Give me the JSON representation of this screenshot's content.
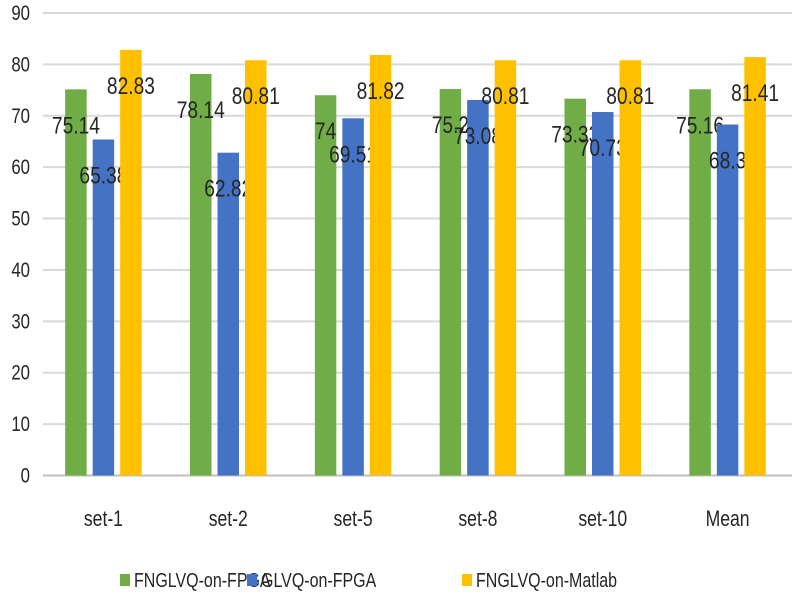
{
  "chart_data": {
    "type": "bar",
    "categories": [
      "set-1",
      "set-2",
      "set-5",
      "set-8",
      "set-10",
      "Mean"
    ],
    "series": [
      {
        "name": "FNGLVQ-on-FPGA",
        "color": "#70ad47",
        "values": [
          75.14,
          78.14,
          74,
          75.2,
          73.33,
          75.16
        ]
      },
      {
        "name": "GLVQ-on-FPGA",
        "color": "#4472c4",
        "values": [
          65.38,
          62.82,
          69.51,
          73.08,
          70.73,
          68.3
        ]
      },
      {
        "name": "FNGLVQ-on-Matlab",
        "color": "#ffc000",
        "values": [
          82.83,
          80.81,
          81.82,
          80.81,
          80.81,
          81.41
        ]
      }
    ],
    "ylim": [
      0,
      90
    ],
    "yticks": [
      0,
      10,
      20,
      30,
      40,
      50,
      60,
      70,
      80,
      90
    ],
    "grid": true,
    "legend": "bottom",
    "data_labels": true
  }
}
